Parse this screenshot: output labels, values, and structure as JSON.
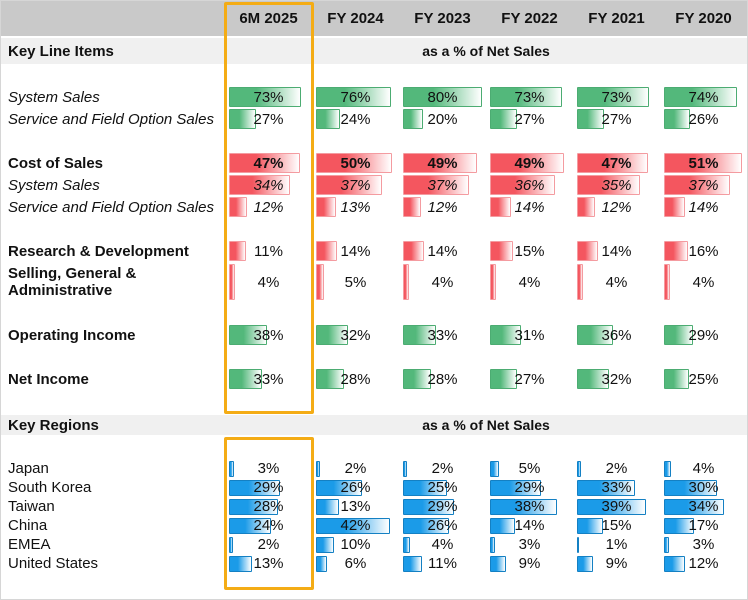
{
  "colors": {
    "header_bg": "#C9C9C9",
    "band_bg": "#F0F0F0",
    "highlight_border": "#F4AC15",
    "text": "#111111",
    "bars": {
      "green": {
        "fill": "#53B87B",
        "border": "#4CAC72"
      },
      "red": {
        "fill": "#F4565F",
        "border": "#F49BA0"
      },
      "blue": {
        "fill": "#1B9BE8",
        "border": "#1480C3"
      }
    }
  },
  "chart_data": {
    "type": "table",
    "title": "",
    "unit": "%",
    "columns": [
      "6M 2025",
      "FY 2024",
      "FY 2023",
      "FY 2022",
      "FY 2021",
      "FY 2020"
    ],
    "highlighted_column": "6M 2025",
    "sections": [
      {
        "title": "Key Line Items",
        "subtitle": "as a % of Net Sales",
        "rows": [
          {
            "label": "System Sales",
            "values": [
              73,
              76,
              80,
              73,
              73,
              74
            ],
            "bar_color": "green",
            "label_style": "italic",
            "value_style": "normal",
            "scale": 80,
            "group_start": true
          },
          {
            "label": "Service and Field Option Sales",
            "values": [
              27,
              24,
              20,
              27,
              27,
              26
            ],
            "bar_color": "green",
            "label_style": "italic",
            "value_style": "normal",
            "scale": 80
          },
          {
            "label": "Cost of Sales",
            "values": [
              47,
              50,
              49,
              49,
              47,
              51
            ],
            "bar_color": "red",
            "label_style": "bold",
            "value_style": "bold",
            "scale": 52,
            "group_start": true
          },
          {
            "label": "System Sales",
            "values": [
              34,
              37,
              37,
              36,
              35,
              37
            ],
            "bar_color": "red",
            "label_style": "italic",
            "value_style": "italic",
            "scale": 44
          },
          {
            "label": "Service and Field Option Sales",
            "values": [
              12,
              13,
              12,
              14,
              12,
              14
            ],
            "bar_color": "red",
            "label_style": "italic",
            "value_style": "italic",
            "scale": 52
          },
          {
            "label": "Research & Development",
            "values": [
              11,
              14,
              14,
              15,
              14,
              16
            ],
            "bar_color": "red",
            "label_style": "bold",
            "value_style": "normal",
            "scale": 52,
            "group_start": true
          },
          {
            "label": "Selling, General & Administrative",
            "values": [
              4,
              5,
              4,
              4,
              4,
              4
            ],
            "bar_color": "red",
            "label_style": "bold",
            "value_style": "normal",
            "scale": 52,
            "tall": true
          },
          {
            "label": "Operating Income",
            "values": [
              38,
              32,
              33,
              31,
              36,
              29
            ],
            "bar_color": "green",
            "label_style": "bold",
            "value_style": "normal",
            "scale": 80,
            "group_start": true
          },
          {
            "label": "Net Income",
            "values": [
              33,
              28,
              28,
              27,
              32,
              25
            ],
            "bar_color": "green",
            "label_style": "bold",
            "value_style": "normal",
            "scale": 80,
            "group_start": true
          }
        ]
      },
      {
        "title": "Key Regions",
        "subtitle": "as a % of Net Sales",
        "rows": [
          {
            "label": "Japan",
            "values": [
              3,
              2,
              2,
              5,
              2,
              4
            ],
            "bar_color": "blue",
            "label_style": "normal",
            "value_style": "normal",
            "scale": 45
          },
          {
            "label": "South Korea",
            "values": [
              29,
              26,
              25,
              29,
              33,
              30
            ],
            "bar_color": "blue",
            "label_style": "normal",
            "value_style": "normal",
            "scale": 45
          },
          {
            "label": "Taiwan",
            "values": [
              28,
              13,
              29,
              38,
              39,
              34
            ],
            "bar_color": "blue",
            "label_style": "normal",
            "value_style": "normal",
            "scale": 45
          },
          {
            "label": "China",
            "values": [
              24,
              42,
              26,
              14,
              15,
              17
            ],
            "bar_color": "blue",
            "label_style": "normal",
            "value_style": "normal",
            "scale": 45
          },
          {
            "label": "EMEA",
            "values": [
              2,
              10,
              4,
              3,
              1,
              3
            ],
            "bar_color": "blue",
            "label_style": "normal",
            "value_style": "normal",
            "scale": 45
          },
          {
            "label": "United States",
            "values": [
              13,
              6,
              11,
              9,
              9,
              12
            ],
            "bar_color": "blue",
            "label_style": "normal",
            "value_style": "normal",
            "scale": 45
          }
        ]
      }
    ]
  }
}
